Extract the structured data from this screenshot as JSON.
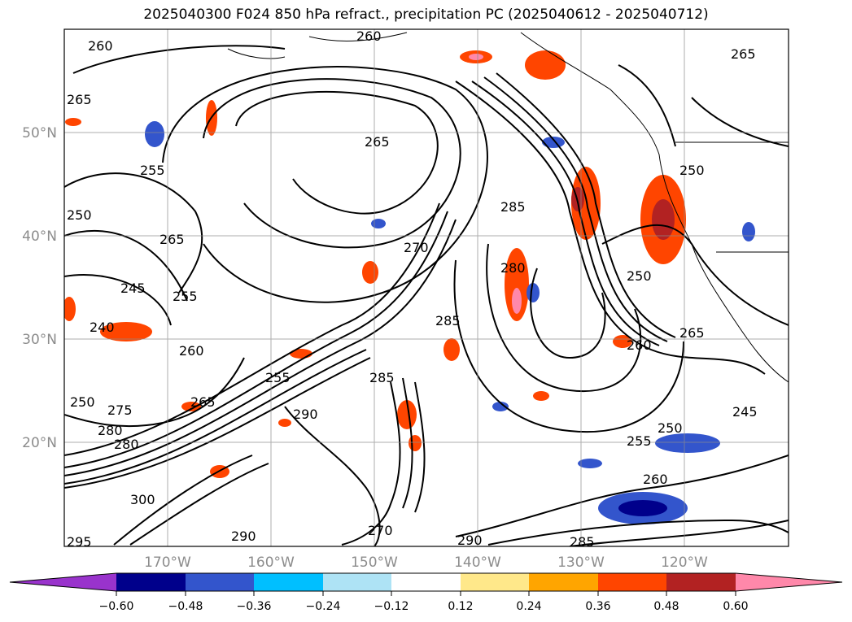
{
  "title": "2025040300 F024 850 hPa refract., precipitation PC (2025040612 - 2025040712)",
  "map": {
    "lon_range": [
      -180,
      -110
    ],
    "lat_range": [
      10,
      60
    ],
    "latitude_labels": [
      "50°N",
      "40°N",
      "30°N",
      "20°N"
    ],
    "latitude_values": [
      50,
      40,
      30,
      20
    ],
    "longitude_labels": [
      "170°W",
      "160°W",
      "150°W",
      "140°W",
      "130°W",
      "120°W"
    ],
    "longitude_values": [
      -170,
      -160,
      -150,
      -140,
      -130,
      -120
    ],
    "gridlines": true,
    "contour_color": "#000000",
    "contour_labels": [
      "260",
      "265",
      "255",
      "265",
      "260",
      "265",
      "250",
      "265",
      "245",
      "255",
      "240",
      "260",
      "250",
      "270",
      "280",
      "285",
      "290",
      "300",
      "265",
      "285",
      "280",
      "275",
      "255",
      "250",
      "260",
      "265",
      "245",
      "250",
      "255",
      "260",
      "250",
      "295",
      "285",
      "290",
      "280",
      "270",
      "285",
      "290"
    ]
  },
  "colorbar": {
    "extend": "both",
    "ticks": [
      "−0.60",
      "−0.48",
      "−0.36",
      "−0.24",
      "−0.12",
      "0.12",
      "0.24",
      "0.36",
      "0.48",
      "0.60"
    ],
    "colors": [
      "#9933cc",
      "#00008b",
      "#3355cc",
      "#00bfff",
      "#aee3f5",
      "#ffffff",
      "#ffe88a",
      "#ffa500",
      "#ff4500",
      "#b22222",
      "#ff88aa"
    ]
  }
}
